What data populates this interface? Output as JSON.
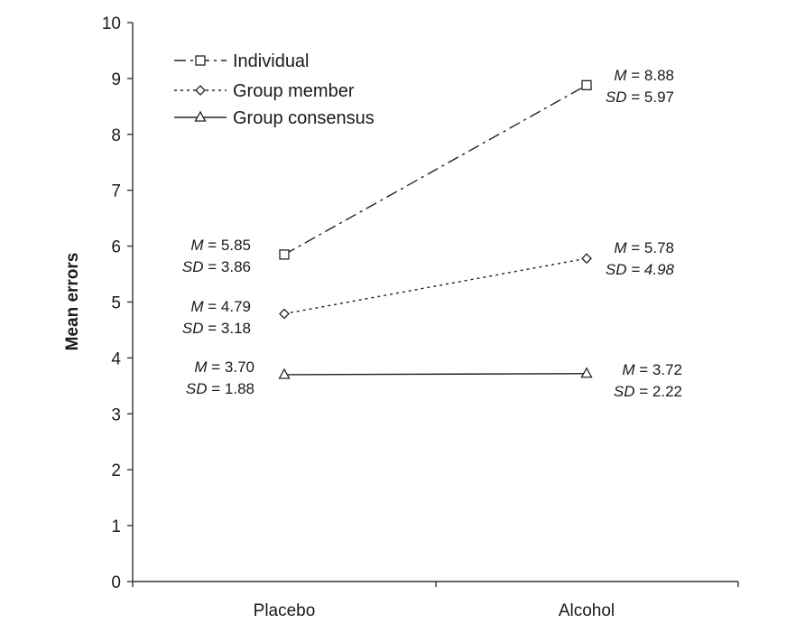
{
  "chart_data": {
    "type": "line",
    "title": "",
    "xlabel": "",
    "ylabel": "Mean errors",
    "ylim": [
      0,
      10
    ],
    "yticks": [
      "0",
      "1",
      "2",
      "3",
      "4",
      "5",
      "6",
      "7",
      "8",
      "9",
      "10"
    ],
    "categories": [
      "Placebo",
      "Alcohol"
    ],
    "grid": false,
    "legend_position": "top-left",
    "series": [
      {
        "name": "Individual",
        "marker": "square",
        "line_style": "dash-dot",
        "values": [
          5.85,
          8.88
        ],
        "labels": [
          {
            "m_key": "M",
            "m_value": "= 5.85",
            "sd_key": "SD",
            "sd_value": "= 3.86"
          },
          {
            "m_key": "M",
            "m_value": "= 8.88",
            "sd_key": "SD",
            "sd_value": "= 5.97"
          }
        ]
      },
      {
        "name": "Group member",
        "marker": "diamond",
        "line_style": "dotted",
        "values": [
          4.79,
          5.78
        ],
        "labels": [
          {
            "m_key": "M",
            "m_value": "= 4.79",
            "sd_key": "SD",
            "sd_value": "= 3.18"
          },
          {
            "m_key": "M",
            "m_value": "= 5.78",
            "sd_key": "SD",
            "sd_value": "= 4.98"
          }
        ]
      },
      {
        "name": "Group consensus",
        "marker": "triangle",
        "line_style": "solid",
        "values": [
          3.7,
          3.72
        ],
        "labels": [
          {
            "m_key": "M",
            "m_value": "= 3.70",
            "sd_key": "SD",
            "sd_value": "= 1.88"
          },
          {
            "m_key": "M",
            "m_value": "= 3.72",
            "sd_key": "SD",
            "sd_value": "= 2.22"
          }
        ]
      }
    ]
  }
}
